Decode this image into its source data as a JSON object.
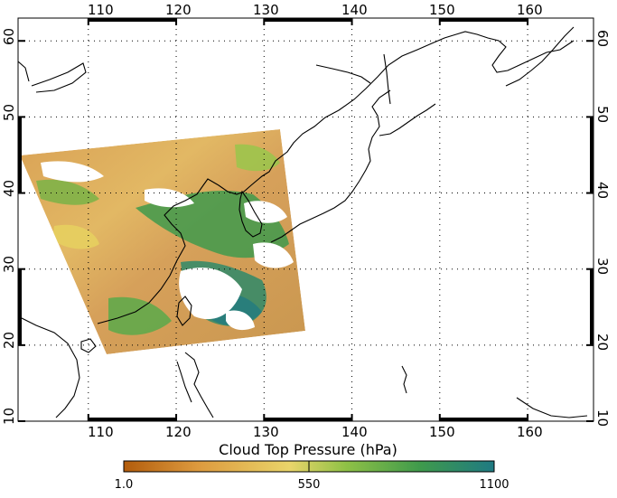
{
  "map": {
    "lon_labels": [
      "110",
      "120",
      "130",
      "140",
      "150",
      "160"
    ],
    "lat_labels": [
      "10",
      "20",
      "30",
      "40",
      "50",
      "60"
    ]
  },
  "colorbar": {
    "title": "Cloud Top Pressure (hPa)",
    "min_label": "1.0",
    "mid_label": "550",
    "max_label": "1100",
    "colors": [
      "#b25c0c",
      "#dd9a3e",
      "#e9d56a",
      "#8fc146",
      "#3f9a4c",
      "#1f7a83"
    ]
  },
  "colors": {
    "clear_sky": "#ffffff",
    "coastline": "#000000",
    "frame": "#000000"
  }
}
